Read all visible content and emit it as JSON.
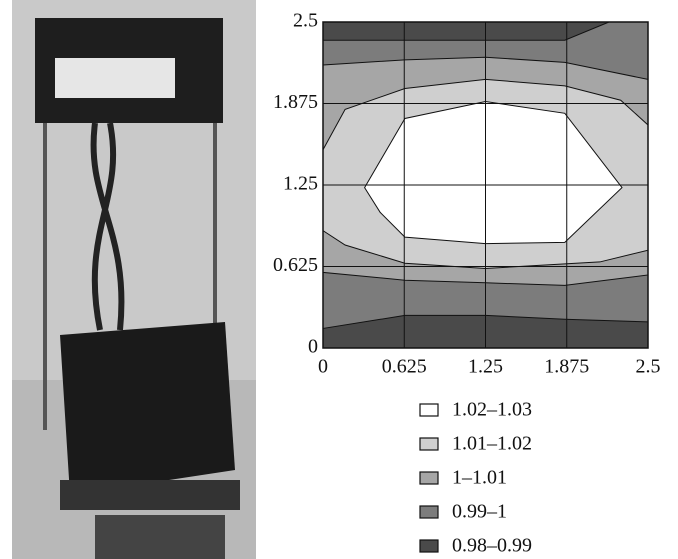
{
  "chart_data": {
    "type": "contour",
    "xlim": [
      0,
      2.5
    ],
    "ylim": [
      0,
      2.5
    ],
    "xticks": [
      0,
      0.625,
      1.25,
      1.875,
      2.5
    ],
    "yticks": [
      0,
      0.625,
      1.25,
      1.875,
      2.5
    ],
    "grid": true,
    "series": [
      {
        "name": "0.98–0.99",
        "color": "#4a4a4a",
        "x": [
          0,
          2.5,
          2.5,
          0
        ],
        "y": [
          0,
          0,
          2.5,
          2.5
        ]
      },
      {
        "name": "0.99–1",
        "color": "#7c7c7c",
        "x": [
          0,
          0.63,
          1.25,
          1.86,
          2.2,
          2.5,
          2.5,
          1.86,
          1.25,
          0.63,
          0
        ],
        "y": [
          2.36,
          2.36,
          2.36,
          2.36,
          2.5,
          2.5,
          0.2,
          0.22,
          0.25,
          0.25,
          0.15
        ]
      },
      {
        "name": "1–1.01",
        "color": "#a6a6a6",
        "x": [
          0,
          0.63,
          1.25,
          1.86,
          2.5,
          2.5,
          1.86,
          1.25,
          0.63,
          0
        ],
        "y": [
          2.17,
          2.21,
          2.23,
          2.19,
          2.06,
          0.56,
          0.48,
          0.5,
          0.52,
          0.58
        ]
      },
      {
        "name": "1.01–1.02",
        "color": "#cfcfcf",
        "x": [
          0,
          0.17,
          0.63,
          1.25,
          1.86,
          2.29,
          2.5,
          2.5,
          2.13,
          1.25,
          0.63,
          0.17,
          0
        ],
        "y": [
          1.52,
          1.83,
          1.99,
          2.06,
          2.01,
          1.9,
          1.71,
          0.75,
          0.66,
          0.61,
          0.65,
          0.79,
          0.9
        ]
      },
      {
        "name": "1.02–1.03",
        "color": "#ffffff",
        "x": [
          0.32,
          0.63,
          1.25,
          1.86,
          2.3,
          1.86,
          1.25,
          0.63,
          0.44
        ],
        "y": [
          1.23,
          1.76,
          1.89,
          1.8,
          1.23,
          0.81,
          0.8,
          0.85,
          1.04
        ]
      }
    ]
  }
}
